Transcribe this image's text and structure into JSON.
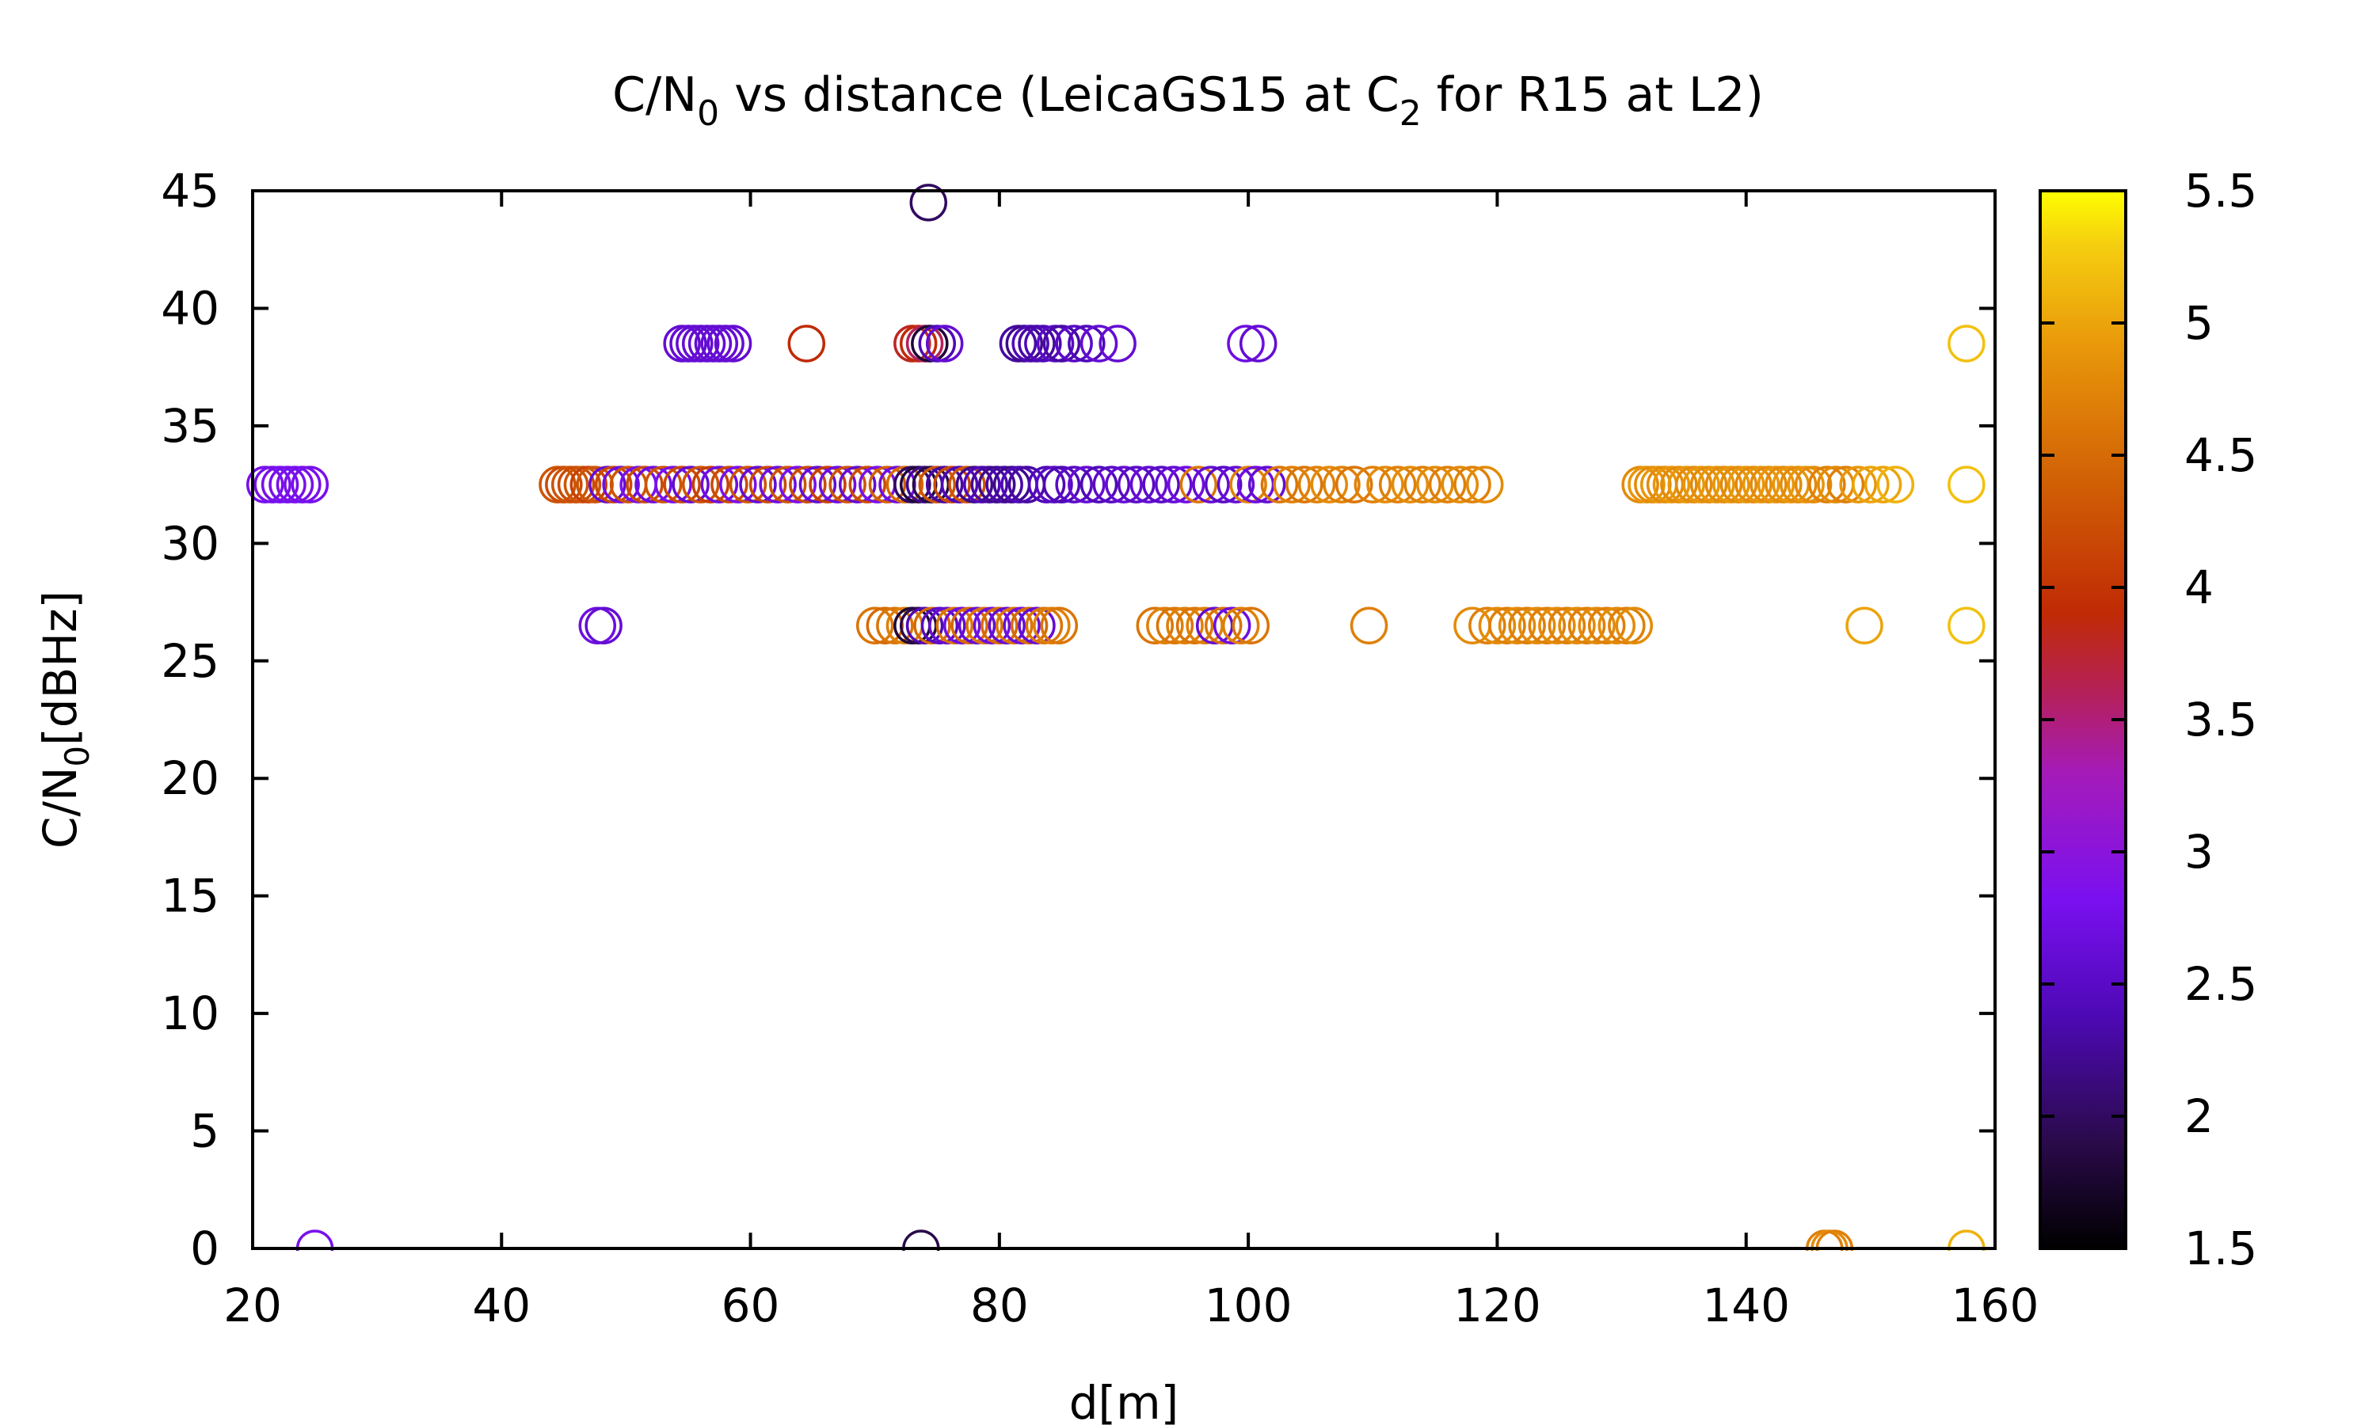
{
  "chart_data": {
    "type": "scatter",
    "title": {
      "main": "C/N",
      "sub1": "0",
      "mid": " vs distance (LeicaGS15 at C",
      "sub2": "2",
      "end": " for R15 at L2)"
    },
    "xlabel": "d[m]",
    "ylabel": {
      "main": "C/N",
      "sub": "0",
      "rest": "[dBHz]"
    },
    "xlim": [
      20,
      160
    ],
    "ylim": [
      0,
      45
    ],
    "xticks": [
      20,
      40,
      60,
      80,
      100,
      120,
      140,
      160
    ],
    "yticks": [
      0,
      5,
      10,
      15,
      20,
      25,
      30,
      35,
      40,
      45
    ],
    "colorbar": {
      "range": [
        1.5,
        5.5
      ],
      "ticks": [
        1.5,
        2,
        2.5,
        3,
        3.5,
        4,
        4.5,
        5,
        5.5
      ],
      "palette": "black-purple-red-orange-yellow"
    },
    "grid": false,
    "marker": "open-circle",
    "points": [
      {
        "x": 74.3,
        "y": 44.5,
        "c": 2.0
      },
      {
        "x": 54.5,
        "y": 38.5,
        "c": 2.6
      },
      {
        "x": 55.0,
        "y": 38.5,
        "c": 2.6
      },
      {
        "x": 55.5,
        "y": 38.5,
        "c": 2.6
      },
      {
        "x": 56.0,
        "y": 38.5,
        "c": 2.6
      },
      {
        "x": 56.5,
        "y": 38.5,
        "c": 2.6
      },
      {
        "x": 57.0,
        "y": 38.5,
        "c": 2.6
      },
      {
        "x": 57.5,
        "y": 38.5,
        "c": 2.6
      },
      {
        "x": 58.0,
        "y": 38.5,
        "c": 2.6
      },
      {
        "x": 58.6,
        "y": 38.5,
        "c": 2.6
      },
      {
        "x": 64.5,
        "y": 38.5,
        "c": 3.9
      },
      {
        "x": 73.0,
        "y": 38.5,
        "c": 3.8
      },
      {
        "x": 73.5,
        "y": 38.5,
        "c": 3.9
      },
      {
        "x": 74.0,
        "y": 38.5,
        "c": 3.6
      },
      {
        "x": 74.4,
        "y": 38.5,
        "c": 1.8
      },
      {
        "x": 75.0,
        "y": 38.5,
        "c": 2.4
      },
      {
        "x": 75.6,
        "y": 38.5,
        "c": 2.6
      },
      {
        "x": 81.5,
        "y": 38.5,
        "c": 2.3
      },
      {
        "x": 82.0,
        "y": 38.5,
        "c": 2.2
      },
      {
        "x": 82.5,
        "y": 38.5,
        "c": 2.4
      },
      {
        "x": 83.0,
        "y": 38.5,
        "c": 2.3
      },
      {
        "x": 83.5,
        "y": 38.5,
        "c": 2.4
      },
      {
        "x": 84.5,
        "y": 38.5,
        "c": 2.5
      },
      {
        "x": 85.0,
        "y": 38.5,
        "c": 2.3
      },
      {
        "x": 86.0,
        "y": 38.5,
        "c": 2.5
      },
      {
        "x": 87.0,
        "y": 38.5,
        "c": 2.4
      },
      {
        "x": 88.0,
        "y": 38.5,
        "c": 2.6
      },
      {
        "x": 89.5,
        "y": 38.5,
        "c": 2.6
      },
      {
        "x": 99.8,
        "y": 38.5,
        "c": 2.7
      },
      {
        "x": 100.8,
        "y": 38.5,
        "c": 2.6
      },
      {
        "x": 157.7,
        "y": 38.5,
        "c": 5.2
      },
      {
        "x": 21.0,
        "y": 32.5,
        "c": 2.8
      },
      {
        "x": 21.6,
        "y": 32.5,
        "c": 2.8
      },
      {
        "x": 22.2,
        "y": 32.5,
        "c": 2.8
      },
      {
        "x": 22.8,
        "y": 32.5,
        "c": 2.8
      },
      {
        "x": 23.4,
        "y": 32.5,
        "c": 2.8
      },
      {
        "x": 24.0,
        "y": 32.5,
        "c": 2.8
      },
      {
        "x": 24.6,
        "y": 32.5,
        "c": 2.8
      },
      {
        "x": 44.5,
        "y": 32.5,
        "c": 4.3
      },
      {
        "x": 45.0,
        "y": 32.5,
        "c": 4.2
      },
      {
        "x": 45.5,
        "y": 32.5,
        "c": 4.3
      },
      {
        "x": 46.0,
        "y": 32.5,
        "c": 4.2
      },
      {
        "x": 46.5,
        "y": 32.5,
        "c": 4.3
      },
      {
        "x": 47.0,
        "y": 32.5,
        "c": 4.1
      },
      {
        "x": 47.5,
        "y": 32.5,
        "c": 4.3
      },
      {
        "x": 48.5,
        "y": 32.5,
        "c": 2.6
      },
      {
        "x": 49.0,
        "y": 32.5,
        "c": 4.2
      },
      {
        "x": 49.6,
        "y": 32.5,
        "c": 2.7
      },
      {
        "x": 50.2,
        "y": 32.5,
        "c": 4.3
      },
      {
        "x": 51.0,
        "y": 32.5,
        "c": 2.8
      },
      {
        "x": 51.5,
        "y": 32.5,
        "c": 4.2
      },
      {
        "x": 52.2,
        "y": 32.5,
        "c": 2.7
      },
      {
        "x": 53.0,
        "y": 32.5,
        "c": 4.3
      },
      {
        "x": 53.8,
        "y": 32.5,
        "c": 2.8
      },
      {
        "x": 54.5,
        "y": 32.5,
        "c": 4.2
      },
      {
        "x": 55.2,
        "y": 32.5,
        "c": 2.6
      },
      {
        "x": 56.0,
        "y": 32.5,
        "c": 4.3
      },
      {
        "x": 56.8,
        "y": 32.5,
        "c": 4.1
      },
      {
        "x": 57.5,
        "y": 32.5,
        "c": 2.7
      },
      {
        "x": 58.3,
        "y": 32.5,
        "c": 4.2
      },
      {
        "x": 59.0,
        "y": 32.5,
        "c": 2.8
      },
      {
        "x": 59.8,
        "y": 32.5,
        "c": 4.3
      },
      {
        "x": 60.6,
        "y": 32.5,
        "c": 2.6
      },
      {
        "x": 61.4,
        "y": 32.5,
        "c": 4.2
      },
      {
        "x": 62.2,
        "y": 32.5,
        "c": 2.7
      },
      {
        "x": 63.0,
        "y": 32.5,
        "c": 4.3
      },
      {
        "x": 63.8,
        "y": 32.5,
        "c": 2.8
      },
      {
        "x": 64.6,
        "y": 32.5,
        "c": 4.2
      },
      {
        "x": 65.4,
        "y": 32.5,
        "c": 2.6
      },
      {
        "x": 66.2,
        "y": 32.5,
        "c": 4.1
      },
      {
        "x": 67.0,
        "y": 32.5,
        "c": 2.7
      },
      {
        "x": 67.8,
        "y": 32.5,
        "c": 4.3
      },
      {
        "x": 68.6,
        "y": 32.5,
        "c": 2.6
      },
      {
        "x": 69.4,
        "y": 32.5,
        "c": 4.2
      },
      {
        "x": 70.2,
        "y": 32.5,
        "c": 2.8
      },
      {
        "x": 71.0,
        "y": 32.5,
        "c": 4.4
      },
      {
        "x": 71.8,
        "y": 32.5,
        "c": 2.7
      },
      {
        "x": 72.4,
        "y": 32.5,
        "c": 4.5
      },
      {
        "x": 73.0,
        "y": 32.5,
        "c": 2.0
      },
      {
        "x": 73.5,
        "y": 32.5,
        "c": 1.8
      },
      {
        "x": 74.0,
        "y": 32.5,
        "c": 2.2
      },
      {
        "x": 74.5,
        "y": 32.5,
        "c": 1.9
      },
      {
        "x": 75.0,
        "y": 32.5,
        "c": 4.3
      },
      {
        "x": 75.6,
        "y": 32.5,
        "c": 2.3
      },
      {
        "x": 76.2,
        "y": 32.5,
        "c": 4.2
      },
      {
        "x": 76.8,
        "y": 32.5,
        "c": 2.4
      },
      {
        "x": 77.4,
        "y": 32.5,
        "c": 4.3
      },
      {
        "x": 78.0,
        "y": 32.5,
        "c": 2.2
      },
      {
        "x": 78.6,
        "y": 32.5,
        "c": 2.4
      },
      {
        "x": 79.2,
        "y": 32.5,
        "c": 2.3
      },
      {
        "x": 79.8,
        "y": 32.5,
        "c": 2.2
      },
      {
        "x": 80.4,
        "y": 32.5,
        "c": 2.3
      },
      {
        "x": 81.0,
        "y": 32.5,
        "c": 2.2
      },
      {
        "x": 81.6,
        "y": 32.5,
        "c": 2.4
      },
      {
        "x": 82.2,
        "y": 32.5,
        "c": 2.3
      },
      {
        "x": 83.8,
        "y": 32.5,
        "c": 2.4
      },
      {
        "x": 84.4,
        "y": 32.5,
        "c": 2.5
      },
      {
        "x": 85.0,
        "y": 32.5,
        "c": 2.4
      },
      {
        "x": 86.0,
        "y": 32.5,
        "c": 2.5
      },
      {
        "x": 87.0,
        "y": 32.5,
        "c": 2.6
      },
      {
        "x": 88.0,
        "y": 32.5,
        "c": 2.4
      },
      {
        "x": 89.0,
        "y": 32.5,
        "c": 2.5
      },
      {
        "x": 90.0,
        "y": 32.5,
        "c": 2.6
      },
      {
        "x": 91.0,
        "y": 32.5,
        "c": 2.5
      },
      {
        "x": 92.0,
        "y": 32.5,
        "c": 2.6
      },
      {
        "x": 93.0,
        "y": 32.5,
        "c": 2.5
      },
      {
        "x": 94.0,
        "y": 32.5,
        "c": 2.6
      },
      {
        "x": 95.0,
        "y": 32.5,
        "c": 2.7
      },
      {
        "x": 96.0,
        "y": 32.5,
        "c": 4.6
      },
      {
        "x": 97.0,
        "y": 32.5,
        "c": 2.6
      },
      {
        "x": 98.0,
        "y": 32.5,
        "c": 2.5
      },
      {
        "x": 99.0,
        "y": 32.5,
        "c": 2.6
      },
      {
        "x": 100.0,
        "y": 32.5,
        "c": 4.7
      },
      {
        "x": 100.6,
        "y": 32.5,
        "c": 2.7
      },
      {
        "x": 101.5,
        "y": 32.5,
        "c": 2.6
      },
      {
        "x": 102.5,
        "y": 32.5,
        "c": 4.6
      },
      {
        "x": 103.5,
        "y": 32.5,
        "c": 4.7
      },
      {
        "x": 104.5,
        "y": 32.5,
        "c": 4.6
      },
      {
        "x": 105.5,
        "y": 32.5,
        "c": 4.7
      },
      {
        "x": 106.5,
        "y": 32.5,
        "c": 4.8
      },
      {
        "x": 107.5,
        "y": 32.5,
        "c": 4.7
      },
      {
        "x": 108.5,
        "y": 32.5,
        "c": 4.6
      },
      {
        "x": 110.0,
        "y": 32.5,
        "c": 4.7
      },
      {
        "x": 111.0,
        "y": 32.5,
        "c": 4.8
      },
      {
        "x": 112.0,
        "y": 32.5,
        "c": 4.7
      },
      {
        "x": 113.0,
        "y": 32.5,
        "c": 4.8
      },
      {
        "x": 114.0,
        "y": 32.5,
        "c": 4.7
      },
      {
        "x": 115.0,
        "y": 32.5,
        "c": 4.8
      },
      {
        "x": 116.0,
        "y": 32.5,
        "c": 4.7
      },
      {
        "x": 117.0,
        "y": 32.5,
        "c": 4.8
      },
      {
        "x": 118.0,
        "y": 32.5,
        "c": 4.7
      },
      {
        "x": 119.0,
        "y": 32.5,
        "c": 4.8
      },
      {
        "x": 131.5,
        "y": 32.5,
        "c": 4.8
      },
      {
        "x": 132.0,
        "y": 32.5,
        "c": 4.9
      },
      {
        "x": 132.5,
        "y": 32.5,
        "c": 4.8
      },
      {
        "x": 133.0,
        "y": 32.5,
        "c": 4.9
      },
      {
        "x": 133.5,
        "y": 32.5,
        "c": 4.8
      },
      {
        "x": 134.0,
        "y": 32.5,
        "c": 4.9
      },
      {
        "x": 134.6,
        "y": 32.5,
        "c": 4.8
      },
      {
        "x": 135.2,
        "y": 32.5,
        "c": 4.9
      },
      {
        "x": 135.8,
        "y": 32.5,
        "c": 4.8
      },
      {
        "x": 136.4,
        "y": 32.5,
        "c": 4.9
      },
      {
        "x": 137.0,
        "y": 32.5,
        "c": 4.8
      },
      {
        "x": 137.6,
        "y": 32.5,
        "c": 4.9
      },
      {
        "x": 138.2,
        "y": 32.5,
        "c": 4.8
      },
      {
        "x": 138.8,
        "y": 32.5,
        "c": 4.9
      },
      {
        "x": 139.4,
        "y": 32.5,
        "c": 4.8
      },
      {
        "x": 140.0,
        "y": 32.5,
        "c": 4.9
      },
      {
        "x": 140.6,
        "y": 32.5,
        "c": 4.8
      },
      {
        "x": 141.2,
        "y": 32.5,
        "c": 4.9
      },
      {
        "x": 141.8,
        "y": 32.5,
        "c": 4.8
      },
      {
        "x": 142.4,
        "y": 32.5,
        "c": 4.9
      },
      {
        "x": 143.0,
        "y": 32.5,
        "c": 4.8
      },
      {
        "x": 143.6,
        "y": 32.5,
        "c": 4.9
      },
      {
        "x": 144.2,
        "y": 32.5,
        "c": 4.8
      },
      {
        "x": 144.8,
        "y": 32.5,
        "c": 4.9
      },
      {
        "x": 145.4,
        "y": 32.5,
        "c": 4.8
      },
      {
        "x": 146.5,
        "y": 32.5,
        "c": 4.7
      },
      {
        "x": 147.2,
        "y": 32.5,
        "c": 4.8
      },
      {
        "x": 148.0,
        "y": 32.5,
        "c": 4.7
      },
      {
        "x": 149.0,
        "y": 32.5,
        "c": 4.9
      },
      {
        "x": 150.0,
        "y": 32.5,
        "c": 5.0
      },
      {
        "x": 151.0,
        "y": 32.5,
        "c": 5.0
      },
      {
        "x": 152.0,
        "y": 32.5,
        "c": 5.1
      },
      {
        "x": 157.7,
        "y": 32.5,
        "c": 5.2
      },
      {
        "x": 47.7,
        "y": 26.5,
        "c": 2.7
      },
      {
        "x": 48.2,
        "y": 26.5,
        "c": 2.6
      },
      {
        "x": 70.0,
        "y": 26.5,
        "c": 4.6
      },
      {
        "x": 70.8,
        "y": 26.5,
        "c": 4.5
      },
      {
        "x": 71.6,
        "y": 26.5,
        "c": 4.6
      },
      {
        "x": 72.4,
        "y": 26.5,
        "c": 4.7
      },
      {
        "x": 73.0,
        "y": 26.5,
        "c": 1.8
      },
      {
        "x": 73.5,
        "y": 26.5,
        "c": 1.9
      },
      {
        "x": 74.0,
        "y": 26.5,
        "c": 2.4
      },
      {
        "x": 74.6,
        "y": 26.5,
        "c": 4.5
      },
      {
        "x": 75.2,
        "y": 26.5,
        "c": 2.5
      },
      {
        "x": 75.8,
        "y": 26.5,
        "c": 2.6
      },
      {
        "x": 76.4,
        "y": 26.5,
        "c": 4.6
      },
      {
        "x": 77.0,
        "y": 26.5,
        "c": 2.7
      },
      {
        "x": 77.6,
        "y": 26.5,
        "c": 4.5
      },
      {
        "x": 78.2,
        "y": 26.5,
        "c": 2.6
      },
      {
        "x": 78.8,
        "y": 26.5,
        "c": 4.6
      },
      {
        "x": 79.4,
        "y": 26.5,
        "c": 2.7
      },
      {
        "x": 80.0,
        "y": 26.5,
        "c": 4.5
      },
      {
        "x": 80.6,
        "y": 26.5,
        "c": 2.6
      },
      {
        "x": 81.2,
        "y": 26.5,
        "c": 4.6
      },
      {
        "x": 81.8,
        "y": 26.5,
        "c": 2.7
      },
      {
        "x": 82.4,
        "y": 26.5,
        "c": 4.5
      },
      {
        "x": 83.0,
        "y": 26.5,
        "c": 2.6
      },
      {
        "x": 83.6,
        "y": 26.5,
        "c": 4.6
      },
      {
        "x": 84.2,
        "y": 26.5,
        "c": 4.7
      },
      {
        "x": 84.8,
        "y": 26.5,
        "c": 4.6
      },
      {
        "x": 92.5,
        "y": 26.5,
        "c": 4.6
      },
      {
        "x": 93.3,
        "y": 26.5,
        "c": 4.7
      },
      {
        "x": 94.1,
        "y": 26.5,
        "c": 4.6
      },
      {
        "x": 94.9,
        "y": 26.5,
        "c": 4.7
      },
      {
        "x": 95.7,
        "y": 26.5,
        "c": 4.6
      },
      {
        "x": 96.5,
        "y": 26.5,
        "c": 4.7
      },
      {
        "x": 97.3,
        "y": 26.5,
        "c": 2.6
      },
      {
        "x": 98.0,
        "y": 26.5,
        "c": 4.6
      },
      {
        "x": 98.7,
        "y": 26.5,
        "c": 2.7
      },
      {
        "x": 99.4,
        "y": 26.5,
        "c": 4.7
      },
      {
        "x": 100.2,
        "y": 26.5,
        "c": 4.6
      },
      {
        "x": 109.7,
        "y": 26.5,
        "c": 4.7
      },
      {
        "x": 118.0,
        "y": 26.5,
        "c": 4.8
      },
      {
        "x": 119.2,
        "y": 26.5,
        "c": 4.7
      },
      {
        "x": 120.0,
        "y": 26.5,
        "c": 4.8
      },
      {
        "x": 120.8,
        "y": 26.5,
        "c": 4.7
      },
      {
        "x": 121.6,
        "y": 26.5,
        "c": 4.8
      },
      {
        "x": 122.4,
        "y": 26.5,
        "c": 4.7
      },
      {
        "x": 123.2,
        "y": 26.5,
        "c": 4.8
      },
      {
        "x": 124.0,
        "y": 26.5,
        "c": 4.7
      },
      {
        "x": 124.8,
        "y": 26.5,
        "c": 4.8
      },
      {
        "x": 125.6,
        "y": 26.5,
        "c": 4.7
      },
      {
        "x": 126.4,
        "y": 26.5,
        "c": 4.8
      },
      {
        "x": 127.2,
        "y": 26.5,
        "c": 4.7
      },
      {
        "x": 128.0,
        "y": 26.5,
        "c": 4.8
      },
      {
        "x": 128.8,
        "y": 26.5,
        "c": 4.7
      },
      {
        "x": 129.6,
        "y": 26.5,
        "c": 4.8
      },
      {
        "x": 130.4,
        "y": 26.5,
        "c": 4.7
      },
      {
        "x": 131.0,
        "y": 26.5,
        "c": 4.8
      },
      {
        "x": 149.5,
        "y": 26.5,
        "c": 5.0
      },
      {
        "x": 157.7,
        "y": 26.5,
        "c": 5.2
      },
      {
        "x": 25.0,
        "y": 0,
        "c": 2.8
      },
      {
        "x": 73.7,
        "y": 0,
        "c": 1.9
      },
      {
        "x": 146.3,
        "y": 0,
        "c": 4.7
      },
      {
        "x": 146.7,
        "y": 0,
        "c": 4.8
      },
      {
        "x": 147.1,
        "y": 0,
        "c": 4.7
      },
      {
        "x": 157.7,
        "y": 0,
        "c": 5.1
      }
    ]
  }
}
